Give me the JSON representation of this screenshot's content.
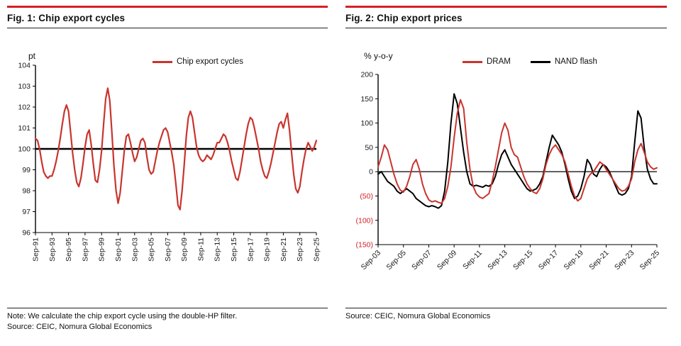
{
  "page": {
    "background": "#ffffff"
  },
  "colors": {
    "accent_red": "#d42027",
    "series_red": "#c9342e",
    "series_black": "#000000",
    "tick_text": "#1a1a1a",
    "negative_tick_red": "#d42027"
  },
  "fig1": {
    "title": "Fig. 1: Chip export cycles",
    "y_unit": "pt",
    "note": "Note: We calculate the chip export cycle using the double-HP filter.",
    "source": "Source: CEIC, Nomura Global Economics"
  },
  "fig2": {
    "title": "Fig. 2: Chip export prices",
    "y_unit": "% y-o-y",
    "source": "Source: CEIC, Nomura Global Economics"
  },
  "chart_data": [
    {
      "type": "line",
      "title": "Fig. 1: Chip export cycles",
      "ylabel": "pt",
      "ylim": [
        96,
        104
      ],
      "ytick_step": 1,
      "baseline": 100,
      "grid": false,
      "legend_position": "top",
      "x_start": "Sep-91",
      "x_end": "Sep-25",
      "frequency": "quarterly",
      "points_per_tick": 8,
      "x_tick_labels": [
        "Sep-91",
        "Sep-93",
        "Sep-95",
        "Sep-97",
        "Sep-99",
        "Sep-01",
        "Sep-03",
        "Sep-05",
        "Sep-07",
        "Sep-09",
        "Sep-11",
        "Sep-13",
        "Sep-15",
        "Sep-17",
        "Sep-19",
        "Sep-21",
        "Sep-23",
        "Sep-25"
      ],
      "x_label_rotation": -90,
      "series": [
        {
          "name": "Chip export cycles",
          "color": "#c9342e",
          "values": [
            100.5,
            100.4,
            100.0,
            99.4,
            98.9,
            98.7,
            98.6,
            98.7,
            98.7,
            99.0,
            99.4,
            99.9,
            100.5,
            101.2,
            101.8,
            102.1,
            101.8,
            100.8,
            99.8,
            99.0,
            98.4,
            98.2,
            98.6,
            99.3,
            100.1,
            100.7,
            100.9,
            100.2,
            99.3,
            98.5,
            98.4,
            99.0,
            99.9,
            101.2,
            102.4,
            102.9,
            102.3,
            100.8,
            99.2,
            98.0,
            97.4,
            97.9,
            98.9,
            99.9,
            100.6,
            100.7,
            100.3,
            99.8,
            99.4,
            99.6,
            100.0,
            100.4,
            100.5,
            100.3,
            99.6,
            99.0,
            98.8,
            98.9,
            99.4,
            99.9,
            100.3,
            100.6,
            100.9,
            101.0,
            100.8,
            100.3,
            99.8,
            99.2,
            98.3,
            97.3,
            97.1,
            98.0,
            99.2,
            100.6,
            101.5,
            101.8,
            101.5,
            100.8,
            100.1,
            99.7,
            99.5,
            99.4,
            99.5,
            99.7,
            99.6,
            99.5,
            99.7,
            100.0,
            100.3,
            100.3,
            100.5,
            100.7,
            100.6,
            100.3,
            99.9,
            99.4,
            99.0,
            98.6,
            98.5,
            98.9,
            99.5,
            100.1,
            100.7,
            101.2,
            101.5,
            101.4,
            101.0,
            100.5,
            100.0,
            99.4,
            99.0,
            98.7,
            98.6,
            98.9,
            99.3,
            99.8,
            100.3,
            100.8,
            101.2,
            101.3,
            101.0,
            101.4,
            101.7,
            100.9,
            99.8,
            98.8,
            98.1,
            97.9,
            98.2,
            98.9,
            99.5,
            100.0,
            100.3,
            100.1,
            99.9,
            100.1,
            100.4
          ]
        }
      ]
    },
    {
      "type": "line",
      "title": "Fig. 2: Chip export prices",
      "ylabel": "% y-o-y",
      "ylim": [
        -150,
        200
      ],
      "ytick_step": 50,
      "negative_ticks_red": true,
      "baseline": 0,
      "grid": false,
      "legend_position": "top",
      "x_start": "Sep-03",
      "x_end": "Sep-25",
      "frequency": "quarterly",
      "points_per_tick": 8,
      "x_tick_labels": [
        "Sep-03",
        "Sep-05",
        "Sep-07",
        "Sep-09",
        "Sep-11",
        "Sep-13",
        "Sep-15",
        "Sep-17",
        "Sep-19",
        "Sep-21",
        "Sep-23",
        "Sep-25"
      ],
      "x_label_rotation": -45,
      "series": [
        {
          "name": "DRAM",
          "color": "#c9342e",
          "values": [
            10,
            30,
            55,
            45,
            20,
            -5,
            -25,
            -38,
            -42,
            -30,
            -10,
            15,
            25,
            5,
            -25,
            -45,
            -58,
            -62,
            -60,
            -63,
            -65,
            -55,
            -30,
            10,
            70,
            120,
            148,
            130,
            60,
            5,
            -30,
            -45,
            -52,
            -55,
            -50,
            -45,
            -20,
            10,
            45,
            80,
            100,
            85,
            50,
            35,
            30,
            10,
            -10,
            -25,
            -35,
            -42,
            -45,
            -35,
            -15,
            15,
            35,
            48,
            55,
            45,
            35,
            20,
            -5,
            -30,
            -50,
            -60,
            -55,
            -35,
            -15,
            -5,
            0,
            10,
            20,
            15,
            5,
            -5,
            -15,
            -25,
            -35,
            -40,
            -38,
            -30,
            -15,
            20,
            45,
            58,
            40,
            20,
            10,
            5,
            8
          ]
        },
        {
          "name": "NAND flash",
          "color": "#000000",
          "values": [
            -5,
            0,
            -10,
            -20,
            -25,
            -30,
            -40,
            -45,
            -40,
            -35,
            -40,
            -45,
            -55,
            -60,
            -65,
            -70,
            -72,
            -70,
            -72,
            -75,
            -70,
            -40,
            20,
            100,
            160,
            140,
            90,
            40,
            0,
            -25,
            -30,
            -28,
            -30,
            -32,
            -28,
            -30,
            -25,
            -10,
            15,
            35,
            45,
            30,
            15,
            5,
            -5,
            -15,
            -25,
            -35,
            -40,
            -38,
            -35,
            -25,
            -10,
            20,
            50,
            75,
            65,
            55,
            40,
            15,
            -15,
            -40,
            -55,
            -50,
            -35,
            -10,
            25,
            15,
            -5,
            -10,
            5,
            15,
            10,
            0,
            -15,
            -30,
            -45,
            -48,
            -45,
            -35,
            -10,
            60,
            125,
            110,
            50,
            5,
            -15,
            -25,
            -25
          ]
        }
      ]
    }
  ]
}
